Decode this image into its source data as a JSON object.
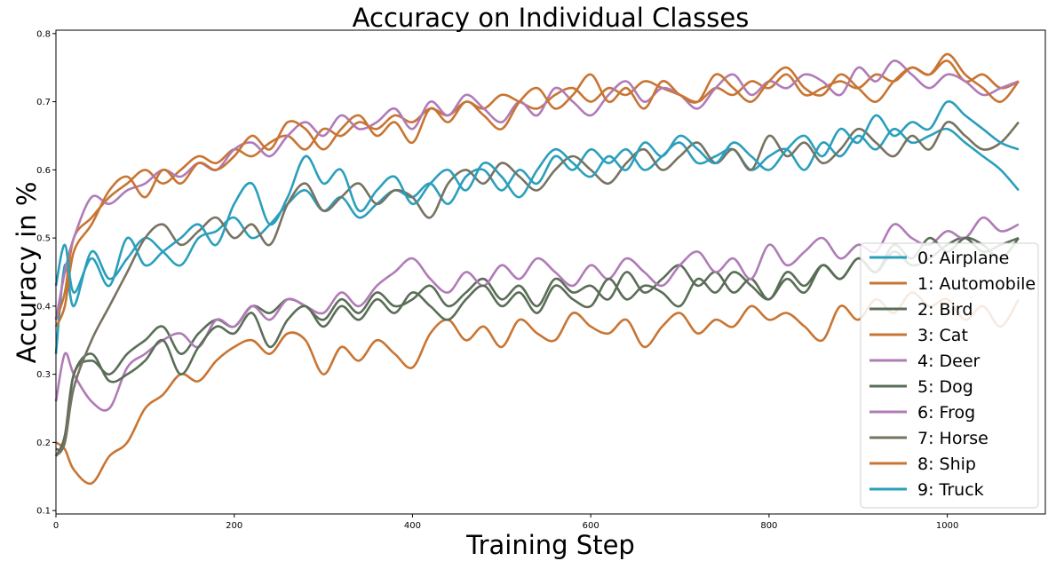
{
  "chart_data": {
    "type": "line",
    "title": "Accuracy on Individual Classes",
    "xlabel": "Training Step",
    "ylabel": "Accuracy in %",
    "xlim": [
      0,
      1110
    ],
    "ylim": [
      0.095,
      0.805
    ],
    "xticks": [
      0,
      200,
      400,
      600,
      800,
      1000
    ],
    "yticks": [
      0.1,
      0.2,
      0.3,
      0.4,
      0.5,
      0.6,
      0.7,
      0.8
    ],
    "grid": false,
    "legend_position": "center-right",
    "series": [
      {
        "name": "0: Airplane",
        "color": "#2a9fbc",
        "x": [
          0,
          10,
          20,
          40,
          60,
          80,
          100,
          120,
          140,
          160,
          180,
          200,
          220,
          240,
          260,
          280,
          300,
          320,
          340,
          360,
          380,
          400,
          420,
          440,
          460,
          480,
          500,
          520,
          540,
          560,
          580,
          600,
          620,
          640,
          660,
          680,
          700,
          720,
          740,
          760,
          780,
          800,
          820,
          840,
          860,
          880,
          900,
          920,
          940,
          960,
          980,
          1000,
          1020,
          1040,
          1060,
          1080
        ],
        "y": [
          0.33,
          0.46,
          0.4,
          0.48,
          0.44,
          0.47,
          0.5,
          0.48,
          0.46,
          0.5,
          0.51,
          0.53,
          0.5,
          0.52,
          0.55,
          0.57,
          0.54,
          0.56,
          0.53,
          0.55,
          0.57,
          0.56,
          0.58,
          0.55,
          0.59,
          0.6,
          0.57,
          0.6,
          0.58,
          0.62,
          0.6,
          0.63,
          0.61,
          0.63,
          0.6,
          0.62,
          0.64,
          0.61,
          0.62,
          0.63,
          0.6,
          0.62,
          0.63,
          0.6,
          0.64,
          0.62,
          0.65,
          0.63,
          0.66,
          0.64,
          0.65,
          0.66,
          0.64,
          0.62,
          0.6,
          0.57
        ]
      },
      {
        "name": "1: Automobile",
        "color": "#c87533",
        "x": [
          0,
          10,
          20,
          40,
          60,
          80,
          100,
          120,
          140,
          160,
          180,
          200,
          220,
          240,
          260,
          280,
          300,
          320,
          340,
          360,
          380,
          400,
          420,
          440,
          460,
          480,
          500,
          520,
          540,
          560,
          580,
          600,
          620,
          640,
          660,
          680,
          700,
          720,
          740,
          760,
          780,
          800,
          820,
          840,
          860,
          880,
          900,
          920,
          940,
          960,
          980,
          1000,
          1020,
          1040,
          1060,
          1080
        ],
        "y": [
          0.38,
          0.42,
          0.5,
          0.53,
          0.56,
          0.58,
          0.6,
          0.58,
          0.6,
          0.62,
          0.61,
          0.63,
          0.62,
          0.64,
          0.65,
          0.63,
          0.66,
          0.65,
          0.67,
          0.66,
          0.68,
          0.67,
          0.69,
          0.68,
          0.7,
          0.69,
          0.71,
          0.7,
          0.69,
          0.71,
          0.72,
          0.7,
          0.72,
          0.71,
          0.73,
          0.72,
          0.71,
          0.7,
          0.72,
          0.71,
          0.73,
          0.72,
          0.74,
          0.71,
          0.72,
          0.73,
          0.72,
          0.74,
          0.73,
          0.75,
          0.74,
          0.76,
          0.73,
          0.74,
          0.72,
          0.73
        ]
      },
      {
        "name": "2: Bird",
        "color": "#5a6e57",
        "x": [
          0,
          10,
          20,
          40,
          60,
          80,
          100,
          120,
          140,
          160,
          180,
          200,
          220,
          240,
          260,
          280,
          300,
          320,
          340,
          360,
          380,
          400,
          420,
          440,
          460,
          480,
          500,
          520,
          540,
          560,
          580,
          600,
          620,
          640,
          660,
          680,
          700,
          720,
          740,
          760,
          780,
          800,
          820,
          840,
          860,
          880,
          900,
          920,
          940,
          960,
          980,
          1000,
          1020,
          1040,
          1060,
          1080
        ],
        "y": [
          0.19,
          0.2,
          0.3,
          0.32,
          0.3,
          0.33,
          0.35,
          0.37,
          0.33,
          0.36,
          0.38,
          0.37,
          0.4,
          0.39,
          0.41,
          0.4,
          0.38,
          0.41,
          0.39,
          0.42,
          0.4,
          0.41,
          0.43,
          0.4,
          0.42,
          0.44,
          0.41,
          0.43,
          0.4,
          0.44,
          0.42,
          0.43,
          0.41,
          0.45,
          0.42,
          0.44,
          0.46,
          0.43,
          0.45,
          0.42,
          0.44,
          0.41,
          0.45,
          0.43,
          0.46,
          0.44,
          0.47,
          0.45,
          0.48,
          0.46,
          0.47,
          0.49,
          0.5,
          0.48,
          0.49,
          0.5
        ]
      },
      {
        "name": "3: Cat",
        "color": "#c87533",
        "x": [
          0,
          10,
          20,
          40,
          60,
          80,
          100,
          120,
          140,
          160,
          180,
          200,
          220,
          240,
          260,
          280,
          300,
          320,
          340,
          360,
          380,
          400,
          420,
          440,
          460,
          480,
          500,
          520,
          540,
          560,
          580,
          600,
          620,
          640,
          660,
          680,
          700,
          720,
          740,
          760,
          780,
          800,
          820,
          840,
          860,
          880,
          900,
          920,
          940,
          960,
          980,
          1000,
          1020,
          1040,
          1060,
          1080
        ],
        "y": [
          0.2,
          0.19,
          0.16,
          0.14,
          0.18,
          0.2,
          0.25,
          0.27,
          0.3,
          0.29,
          0.32,
          0.34,
          0.35,
          0.33,
          0.36,
          0.35,
          0.3,
          0.34,
          0.32,
          0.35,
          0.33,
          0.31,
          0.36,
          0.38,
          0.35,
          0.37,
          0.34,
          0.38,
          0.36,
          0.35,
          0.39,
          0.37,
          0.36,
          0.38,
          0.34,
          0.37,
          0.39,
          0.36,
          0.38,
          0.37,
          0.4,
          0.38,
          0.39,
          0.37,
          0.35,
          0.4,
          0.38,
          0.41,
          0.39,
          0.42,
          0.4,
          0.41,
          0.38,
          0.4,
          0.37,
          0.41
        ]
      },
      {
        "name": "4: Deer",
        "color": "#b07bb7",
        "x": [
          0,
          10,
          20,
          40,
          60,
          80,
          100,
          120,
          140,
          160,
          180,
          200,
          220,
          240,
          260,
          280,
          300,
          320,
          340,
          360,
          380,
          400,
          420,
          440,
          460,
          480,
          500,
          520,
          540,
          560,
          580,
          600,
          620,
          640,
          660,
          680,
          700,
          720,
          740,
          760,
          780,
          800,
          820,
          840,
          860,
          880,
          900,
          920,
          940,
          960,
          980,
          1000,
          1020,
          1040,
          1060,
          1080
        ],
        "y": [
          0.26,
          0.33,
          0.3,
          0.26,
          0.25,
          0.31,
          0.33,
          0.35,
          0.36,
          0.34,
          0.38,
          0.37,
          0.4,
          0.38,
          0.41,
          0.4,
          0.39,
          0.42,
          0.4,
          0.43,
          0.45,
          0.47,
          0.44,
          0.42,
          0.45,
          0.43,
          0.46,
          0.44,
          0.47,
          0.45,
          0.43,
          0.46,
          0.44,
          0.47,
          0.45,
          0.43,
          0.46,
          0.48,
          0.45,
          0.47,
          0.44,
          0.49,
          0.46,
          0.48,
          0.5,
          0.47,
          0.49,
          0.48,
          0.52,
          0.5,
          0.49,
          0.51,
          0.5,
          0.53,
          0.51,
          0.52
        ]
      },
      {
        "name": "5: Dog",
        "color": "#5a6e57",
        "x": [
          0,
          10,
          20,
          40,
          60,
          80,
          100,
          120,
          140,
          160,
          180,
          200,
          220,
          240,
          260,
          280,
          300,
          320,
          340,
          360,
          380,
          400,
          420,
          440,
          460,
          480,
          500,
          520,
          540,
          560,
          580,
          600,
          620,
          640,
          660,
          680,
          700,
          720,
          740,
          760,
          780,
          800,
          820,
          840,
          860,
          880,
          900,
          920,
          940,
          960,
          980,
          1000,
          1020,
          1040,
          1060,
          1080
        ],
        "y": [
          0.18,
          0.21,
          0.3,
          0.33,
          0.29,
          0.3,
          0.32,
          0.35,
          0.3,
          0.34,
          0.37,
          0.36,
          0.39,
          0.34,
          0.38,
          0.4,
          0.37,
          0.4,
          0.38,
          0.41,
          0.39,
          0.42,
          0.4,
          0.38,
          0.41,
          0.43,
          0.4,
          0.42,
          0.39,
          0.43,
          0.41,
          0.4,
          0.44,
          0.41,
          0.43,
          0.42,
          0.4,
          0.44,
          0.42,
          0.45,
          0.43,
          0.41,
          0.44,
          0.42,
          0.46,
          0.44,
          0.47,
          0.45,
          0.49,
          0.47,
          0.5,
          0.48,
          0.5,
          0.49,
          0.47,
          0.5
        ]
      },
      {
        "name": "6: Frog",
        "color": "#b07bb7",
        "x": [
          0,
          10,
          20,
          40,
          60,
          80,
          100,
          120,
          140,
          160,
          180,
          200,
          220,
          240,
          260,
          280,
          300,
          320,
          340,
          360,
          380,
          400,
          420,
          440,
          460,
          480,
          500,
          520,
          540,
          560,
          580,
          600,
          620,
          640,
          660,
          680,
          700,
          720,
          740,
          760,
          780,
          800,
          820,
          840,
          860,
          880,
          900,
          920,
          940,
          960,
          980,
          1000,
          1020,
          1040,
          1060,
          1080
        ],
        "y": [
          0.38,
          0.45,
          0.5,
          0.56,
          0.55,
          0.57,
          0.58,
          0.6,
          0.59,
          0.61,
          0.6,
          0.63,
          0.64,
          0.62,
          0.65,
          0.67,
          0.65,
          0.68,
          0.66,
          0.67,
          0.69,
          0.66,
          0.7,
          0.68,
          0.71,
          0.69,
          0.67,
          0.7,
          0.68,
          0.72,
          0.7,
          0.68,
          0.71,
          0.73,
          0.7,
          0.72,
          0.71,
          0.69,
          0.72,
          0.74,
          0.71,
          0.73,
          0.72,
          0.74,
          0.73,
          0.71,
          0.75,
          0.73,
          0.76,
          0.74,
          0.72,
          0.74,
          0.73,
          0.71,
          0.72,
          0.73
        ]
      },
      {
        "name": "7: Horse",
        "color": "#787262",
        "x": [
          0,
          10,
          20,
          40,
          60,
          80,
          100,
          120,
          140,
          160,
          180,
          200,
          220,
          240,
          260,
          280,
          300,
          320,
          340,
          360,
          380,
          400,
          420,
          440,
          460,
          480,
          500,
          520,
          540,
          560,
          580,
          600,
          620,
          640,
          660,
          680,
          700,
          720,
          740,
          760,
          780,
          800,
          820,
          840,
          860,
          880,
          900,
          920,
          940,
          960,
          980,
          1000,
          1020,
          1040,
          1060,
          1080
        ],
        "y": [
          0.18,
          0.2,
          0.28,
          0.35,
          0.4,
          0.45,
          0.5,
          0.52,
          0.49,
          0.51,
          0.53,
          0.5,
          0.52,
          0.49,
          0.55,
          0.58,
          0.54,
          0.56,
          0.58,
          0.55,
          0.57,
          0.56,
          0.53,
          0.58,
          0.6,
          0.58,
          0.61,
          0.59,
          0.57,
          0.6,
          0.62,
          0.6,
          0.58,
          0.61,
          0.63,
          0.6,
          0.62,
          0.64,
          0.61,
          0.63,
          0.6,
          0.65,
          0.62,
          0.64,
          0.61,
          0.63,
          0.66,
          0.64,
          0.62,
          0.65,
          0.63,
          0.67,
          0.65,
          0.63,
          0.64,
          0.67
        ]
      },
      {
        "name": "8: Ship",
        "color": "#c87533",
        "x": [
          0,
          10,
          20,
          40,
          60,
          80,
          100,
          120,
          140,
          160,
          180,
          200,
          220,
          240,
          260,
          280,
          300,
          320,
          340,
          360,
          380,
          400,
          420,
          440,
          460,
          480,
          500,
          520,
          540,
          560,
          580,
          600,
          620,
          640,
          660,
          680,
          700,
          720,
          740,
          760,
          780,
          800,
          820,
          840,
          860,
          880,
          900,
          920,
          940,
          960,
          980,
          1000,
          1020,
          1040,
          1060,
          1080
        ],
        "y": [
          0.37,
          0.4,
          0.48,
          0.52,
          0.57,
          0.59,
          0.56,
          0.6,
          0.58,
          0.61,
          0.6,
          0.62,
          0.65,
          0.63,
          0.67,
          0.66,
          0.63,
          0.66,
          0.68,
          0.65,
          0.67,
          0.64,
          0.69,
          0.67,
          0.7,
          0.68,
          0.66,
          0.7,
          0.72,
          0.69,
          0.71,
          0.74,
          0.7,
          0.72,
          0.69,
          0.73,
          0.71,
          0.7,
          0.74,
          0.72,
          0.7,
          0.73,
          0.75,
          0.72,
          0.71,
          0.74,
          0.72,
          0.7,
          0.73,
          0.75,
          0.74,
          0.77,
          0.74,
          0.72,
          0.7,
          0.73
        ]
      },
      {
        "name": "9: Truck",
        "color": "#2a9fbc",
        "x": [
          0,
          10,
          20,
          40,
          60,
          80,
          100,
          120,
          140,
          160,
          180,
          200,
          220,
          240,
          260,
          280,
          300,
          320,
          340,
          360,
          380,
          400,
          420,
          440,
          460,
          480,
          500,
          520,
          540,
          560,
          580,
          600,
          620,
          640,
          660,
          680,
          700,
          720,
          740,
          760,
          780,
          800,
          820,
          840,
          860,
          880,
          900,
          920,
          940,
          960,
          980,
          1000,
          1020,
          1040,
          1060,
          1080
        ],
        "y": [
          0.43,
          0.49,
          0.42,
          0.47,
          0.43,
          0.5,
          0.46,
          0.48,
          0.5,
          0.52,
          0.49,
          0.55,
          0.58,
          0.52,
          0.56,
          0.62,
          0.58,
          0.6,
          0.54,
          0.57,
          0.59,
          0.55,
          0.58,
          0.6,
          0.57,
          0.61,
          0.59,
          0.56,
          0.6,
          0.63,
          0.61,
          0.59,
          0.62,
          0.6,
          0.64,
          0.62,
          0.65,
          0.63,
          0.61,
          0.64,
          0.62,
          0.6,
          0.63,
          0.65,
          0.62,
          0.66,
          0.64,
          0.68,
          0.65,
          0.67,
          0.66,
          0.7,
          0.68,
          0.66,
          0.64,
          0.63
        ]
      }
    ]
  }
}
